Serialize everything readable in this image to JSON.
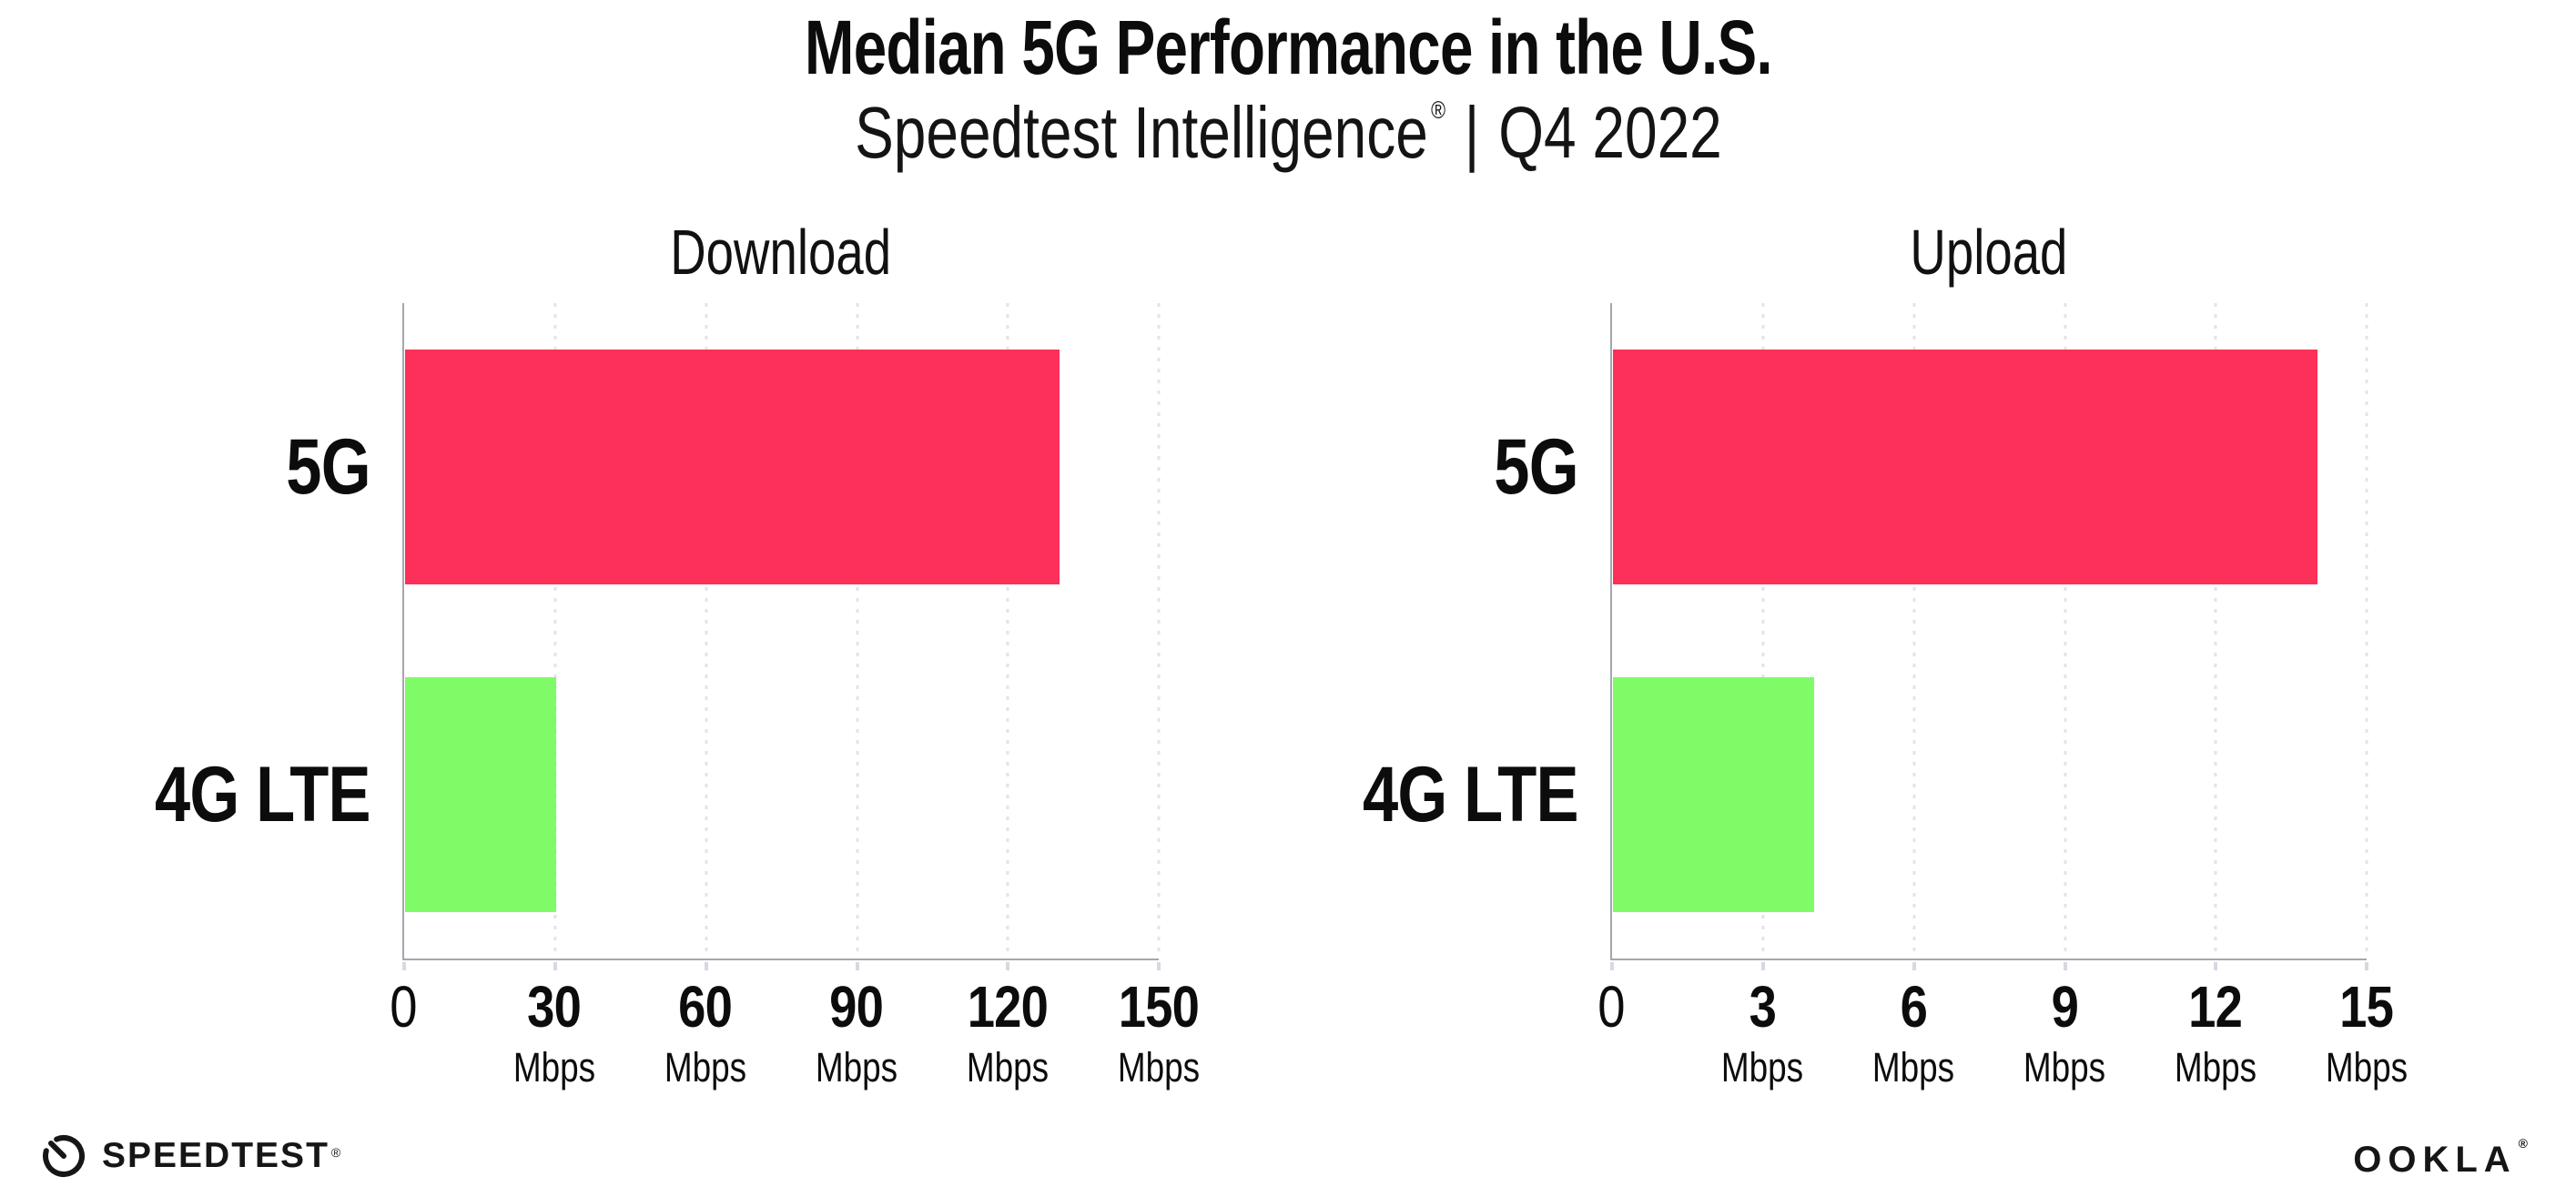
{
  "header": {
    "title": "Median 5G Performance in the U.S.",
    "subtitle_brand": "Speedtest Intelligence",
    "subtitle_registered_mark": "®",
    "subtitle_divider": "|",
    "subtitle_period": "Q4 2022"
  },
  "chart_data": [
    {
      "type": "bar",
      "orientation": "horizontal",
      "title": "Download",
      "categories": [
        "5G",
        "4G LTE"
      ],
      "values": [
        130,
        30
      ],
      "unit": "Mbps",
      "xlim": [
        0,
        150
      ],
      "xticks": [
        0,
        30,
        60,
        90,
        120,
        150
      ],
      "bar_colors": [
        "#FC3058",
        "#80FB68"
      ],
      "grid": "vertical-dotted",
      "legend_position": "none"
    },
    {
      "type": "bar",
      "orientation": "horizontal",
      "title": "Upload",
      "categories": [
        "5G",
        "4G LTE"
      ],
      "values": [
        14,
        4
      ],
      "unit": "Mbps",
      "xlim": [
        0,
        15
      ],
      "xticks": [
        0,
        3,
        6,
        9,
        12,
        15
      ],
      "bar_colors": [
        "#FC3058",
        "#80FB68"
      ],
      "grid": "vertical-dotted",
      "legend_position": "none"
    }
  ],
  "colors": {
    "bar_5g": "#FC3058",
    "bar_4g_lte": "#80FB68",
    "axis": "#A6A6AF",
    "gridline": "#E3E3EB",
    "text": "#0C0C0C"
  },
  "footer": {
    "speedtest_label": "SPEEDTEST",
    "speedtest_mark": "®",
    "ookla_label": "OOKLA",
    "ookla_mark": "®"
  }
}
